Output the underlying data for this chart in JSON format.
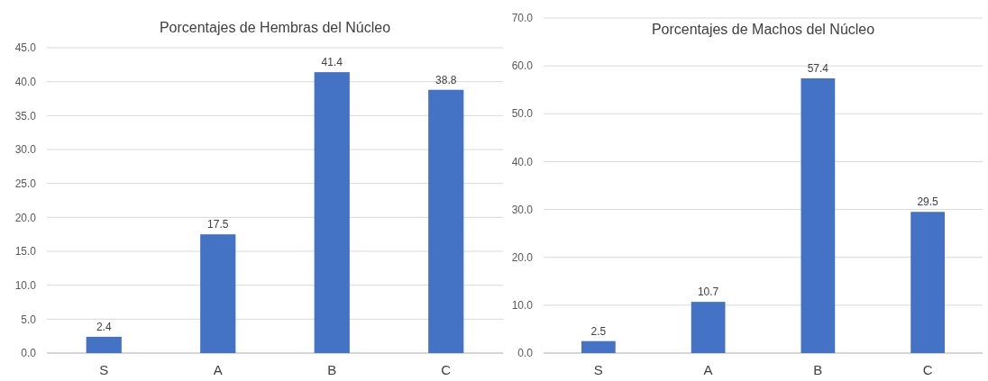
{
  "chart_data": [
    {
      "type": "bar",
      "title": "Porcentajes de Hembras del Núcleo",
      "categories": [
        "S",
        "A",
        "B",
        "C"
      ],
      "values": [
        2.4,
        17.5,
        41.4,
        38.8
      ],
      "color": "#4472c4",
      "data_labels": true,
      "grid": "y",
      "ylim": [
        0,
        45
      ],
      "yticks": [
        {
          "value": 0,
          "label": "0.0"
        },
        {
          "value": 5,
          "label": "5.0"
        },
        {
          "value": 10,
          "label": "10.0"
        },
        {
          "value": 15,
          "label": "15.0"
        },
        {
          "value": 20,
          "label": "20.0"
        },
        {
          "value": 25,
          "label": "25.0"
        },
        {
          "value": 30,
          "label": "30.0"
        },
        {
          "value": 35,
          "label": "35.0"
        },
        {
          "value": 40,
          "label": "40.0"
        },
        {
          "value": 45,
          "label": "45.0"
        }
      ]
    },
    {
      "type": "bar",
      "title": "Porcentajes de Machos del Núcleo",
      "categories": [
        "S",
        "A",
        "B",
        "C"
      ],
      "values": [
        2.5,
        10.7,
        57.4,
        29.5
      ],
      "color": "#4472c4",
      "data_labels": true,
      "grid": "y",
      "ylim": [
        0,
        70
      ],
      "yticks": [
        {
          "value": 0,
          "label": "0.0"
        },
        {
          "value": 10,
          "label": "10.0"
        },
        {
          "value": 20,
          "label": "20.0"
        },
        {
          "value": 30,
          "label": "30.0"
        },
        {
          "value": 40,
          "label": "40.0"
        },
        {
          "value": 50,
          "label": "50.0"
        },
        {
          "value": 60,
          "label": "60.0"
        },
        {
          "value": 70,
          "label": "70.0"
        }
      ]
    }
  ]
}
